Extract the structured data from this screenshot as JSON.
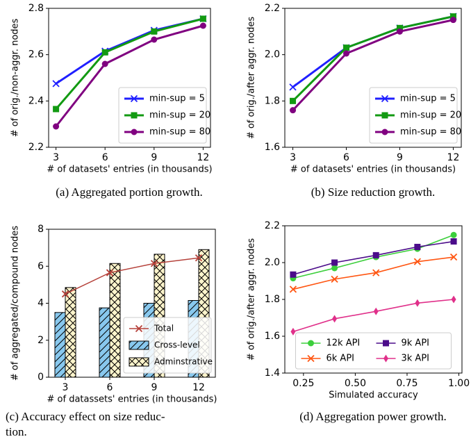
{
  "chart_data": [
    {
      "type": "line",
      "caption": [
        "(a) Aggregated portion growth."
      ],
      "xlabel": "# of datasets' entries (in thousands)",
      "ylabel": "# of orig./non-aggr. nodes",
      "x": [
        3,
        6,
        9,
        12
      ],
      "xlim": [
        2.55,
        12.45
      ],
      "xticks": [
        3,
        6,
        9,
        12
      ],
      "ylim": [
        2.2,
        2.8
      ],
      "yticks": [
        2.2,
        2.4,
        2.6,
        2.8
      ],
      "legend": "lower right",
      "legend_columns": 1,
      "series": [
        {
          "name": "min-sup = 5",
          "color": "#1f1fff",
          "marker": "x",
          "values": [
            2.475,
            2.615,
            2.705,
            2.755
          ]
        },
        {
          "name": "min-sup = 20",
          "color": "#129a12",
          "marker": "s",
          "values": [
            2.365,
            2.61,
            2.7,
            2.755
          ]
        },
        {
          "name": "min-sup = 80",
          "color": "#800080",
          "marker": "o",
          "values": [
            2.29,
            2.56,
            2.665,
            2.725
          ]
        }
      ]
    },
    {
      "type": "line",
      "caption": [
        "(b) Size reduction growth."
      ],
      "xlabel": "# of datasets' entries (in thousands)",
      "ylabel": "# of orig./after aggr. nodes",
      "x": [
        3,
        6,
        9,
        12
      ],
      "xlim": [
        2.55,
        12.45
      ],
      "xticks": [
        3,
        6,
        9,
        12
      ],
      "ylim": [
        1.6,
        2.2
      ],
      "yticks": [
        1.6,
        1.8,
        {
          "value": 2.0,
          "label": "2.0"
        },
        2.2
      ],
      "legend": "lower right",
      "legend_columns": 1,
      "series": [
        {
          "name": "min-sup = 5",
          "color": "#1f1fff",
          "marker": "x",
          "values": [
            1.86,
            2.03,
            2.115,
            2.165
          ]
        },
        {
          "name": "min-sup = 20",
          "color": "#129a12",
          "marker": "s",
          "values": [
            1.8,
            2.03,
            2.115,
            2.165
          ]
        },
        {
          "name": "min-sup = 80",
          "color": "#800080",
          "marker": "o",
          "values": [
            1.76,
            2.005,
            2.1,
            2.15
          ]
        }
      ]
    },
    {
      "type": "bar",
      "caption": [
        "(c) Accuracy effect on size reduc-",
        "tion."
      ],
      "xlabel": "# of datassets' entries (in thousands)",
      "ylabel": "# of aggregated/compound nodes",
      "categories": [
        "3",
        "6",
        "9",
        "12"
      ],
      "ylim": [
        0,
        8
      ],
      "yticks": [
        0,
        2,
        4,
        6,
        8
      ],
      "legend": "lower right",
      "legend_columns": 1,
      "series": [
        {
          "name": "Total",
          "kind": "line",
          "color": "#b5413a",
          "marker": "x",
          "values": [
            4.5,
            5.65,
            6.15,
            6.45
          ]
        },
        {
          "name": "Cross-level",
          "kind": "bar",
          "color": "#88c8ee",
          "hatch": "//",
          "values": [
            3.5,
            3.75,
            4.0,
            4.15
          ]
        },
        {
          "name": "Adminstrative",
          "kind": "bar",
          "color": "#fff5cc",
          "hatch": "x",
          "values": [
            4.85,
            6.15,
            6.65,
            6.9
          ]
        }
      ]
    },
    {
      "type": "line",
      "caption": [
        "(d) Aggregation power growth."
      ],
      "xlabel": "Simulated accuracy",
      "ylabel": "# of orig./after aggr. nodes",
      "x": [
        0.2,
        0.4,
        0.6,
        0.8,
        0.975
      ],
      "xlim": [
        0.16,
        1.015
      ],
      "xticks": [
        0.25,
        {
          "value": 0.5,
          "label": "0.50"
        },
        0.75,
        {
          "value": 1.0,
          "label": "1.00"
        }
      ],
      "ylim": [
        1.4,
        2.2
      ],
      "yticks": [
        1.4,
        1.6,
        1.8,
        {
          "value": 2.0,
          "label": "2.0"
        },
        2.2
      ],
      "legend": "lower center",
      "legend_columns": 2,
      "series": [
        {
          "name": "12k API",
          "color": "#3ccf3c",
          "marker": "o",
          "values": [
            1.915,
            1.97,
            2.03,
            2.075,
            2.15
          ]
        },
        {
          "name": "9k API",
          "color": "#4b0c8a",
          "marker": "s",
          "values": [
            1.935,
            2.0,
            2.04,
            2.085,
            2.115
          ]
        },
        {
          "name": "6k API",
          "color": "#ff5511",
          "marker": "x",
          "values": [
            1.855,
            1.91,
            1.945,
            2.005,
            2.03
          ]
        },
        {
          "name": "3k API",
          "color": "#e0308a",
          "marker": "d",
          "values": [
            1.625,
            1.695,
            1.735,
            1.78,
            1.8
          ]
        }
      ]
    }
  ]
}
